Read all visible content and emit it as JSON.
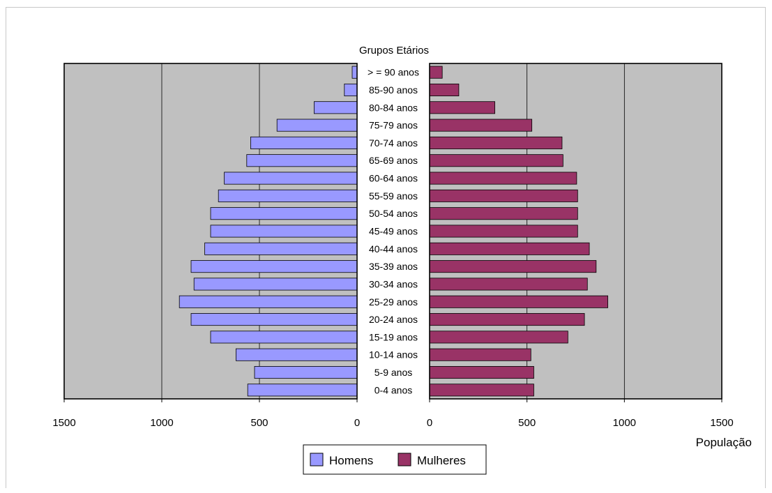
{
  "chart_data": {
    "type": "bar",
    "subtype": "population-pyramid",
    "title": "Grupos Etários",
    "xlabel": "População",
    "categories": [
      "> = 90 anos",
      "85-90 anos",
      "80-84 anos",
      "75-79 anos",
      "70-74 anos",
      "65-69 anos",
      "60-64 anos",
      "55-59 anos",
      "50-54 anos",
      "45-49 anos",
      "40-44 anos",
      "35-39 anos",
      "30-34 anos",
      "25-29 anos",
      "20-24 anos",
      "15-19 anos",
      "10-14 anos",
      "5-9 anos",
      "0-4 anos"
    ],
    "series": [
      {
        "name": "Homens",
        "color": "#9999ff",
        "values": [
          25,
          65,
          220,
          410,
          545,
          565,
          680,
          710,
          750,
          750,
          780,
          850,
          835,
          910,
          850,
          750,
          620,
          525,
          560
        ]
      },
      {
        "name": "Mulheres",
        "color": "#993366",
        "values": [
          65,
          150,
          335,
          525,
          680,
          685,
          755,
          760,
          760,
          760,
          820,
          855,
          810,
          915,
          795,
          710,
          520,
          535,
          535
        ]
      }
    ],
    "xlim": [
      0,
      1500
    ],
    "ticks": [
      1500,
      1000,
      500,
      0
    ],
    "ticks_right": [
      0,
      500,
      1000,
      1500
    ],
    "grid": true,
    "legend_position": "bottom",
    "plot_background": "#c0c0c0"
  }
}
